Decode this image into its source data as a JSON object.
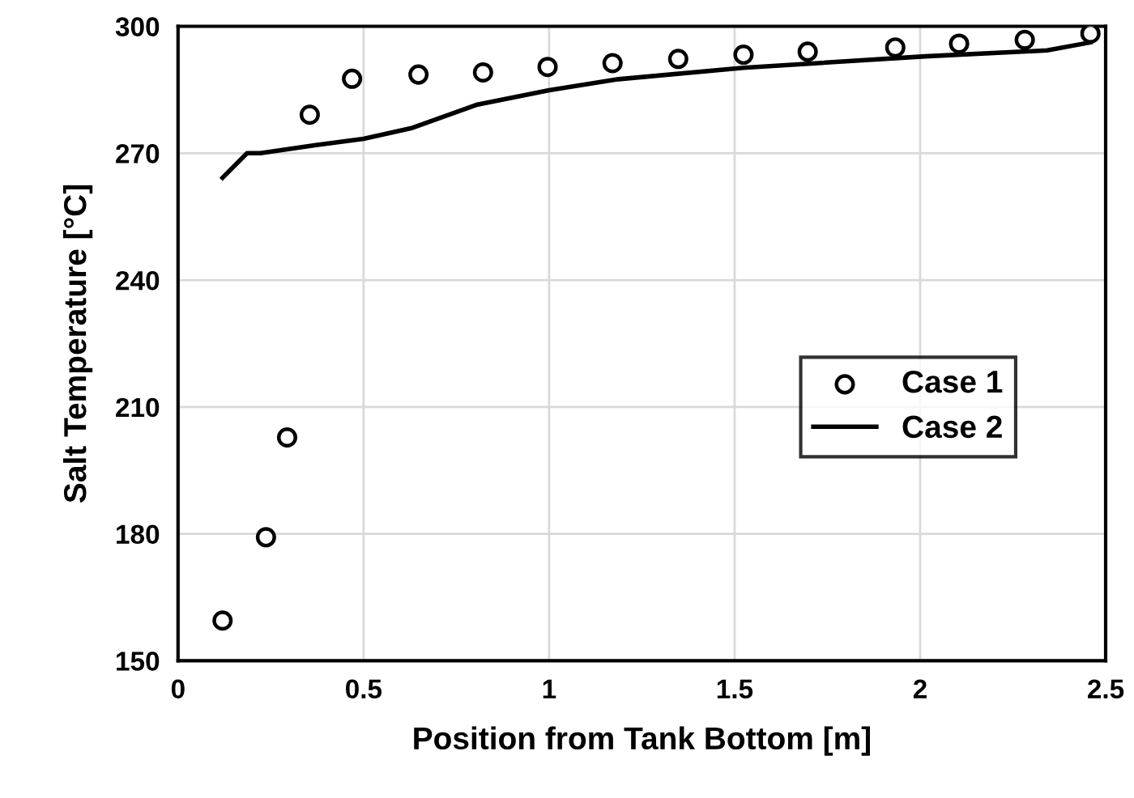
{
  "chart_data": {
    "type": "scatter",
    "xlabel": "Position from Tank Bottom [m]",
    "ylabel": "Salt Temperature [°C]",
    "xlim": [
      0,
      2.5
    ],
    "xticks": [
      0,
      0.5,
      1,
      1.5,
      2,
      2.5
    ],
    "ylim": [
      150,
      300
    ],
    "yticks": [
      150,
      180,
      210,
      240,
      270,
      300
    ],
    "grid": true,
    "legend": "center right",
    "series": [
      {
        "name": "Case 1",
        "marker": "circle",
        "color": "#000000",
        "x": [
          0.12,
          0.237,
          0.294,
          0.355,
          0.469,
          0.648,
          0.822,
          0.996,
          1.171,
          1.348,
          1.524,
          1.697,
          1.933,
          2.105,
          2.282,
          2.459
        ],
        "values": [
          159.5,
          179.2,
          202.8,
          279.1,
          287.6,
          288.6,
          289.1,
          290.4,
          291.3,
          292.3,
          293.3,
          294.0,
          295.0,
          295.9,
          296.8,
          298.3
        ]
      },
      {
        "name": "Case 2",
        "type": "line",
        "line_style": "solid",
        "color": "#000000",
        "x": [
          0.12,
          0.186,
          0.222,
          0.368,
          0.5,
          0.632,
          0.807,
          1.0,
          1.187,
          1.524,
          2.013,
          2.342,
          2.459
        ],
        "values": [
          264.2,
          270.0,
          270.0,
          271.9,
          273.4,
          276.0,
          281.5,
          284.9,
          287.5,
          290.2,
          292.9,
          294.3,
          296.2
        ]
      }
    ]
  }
}
